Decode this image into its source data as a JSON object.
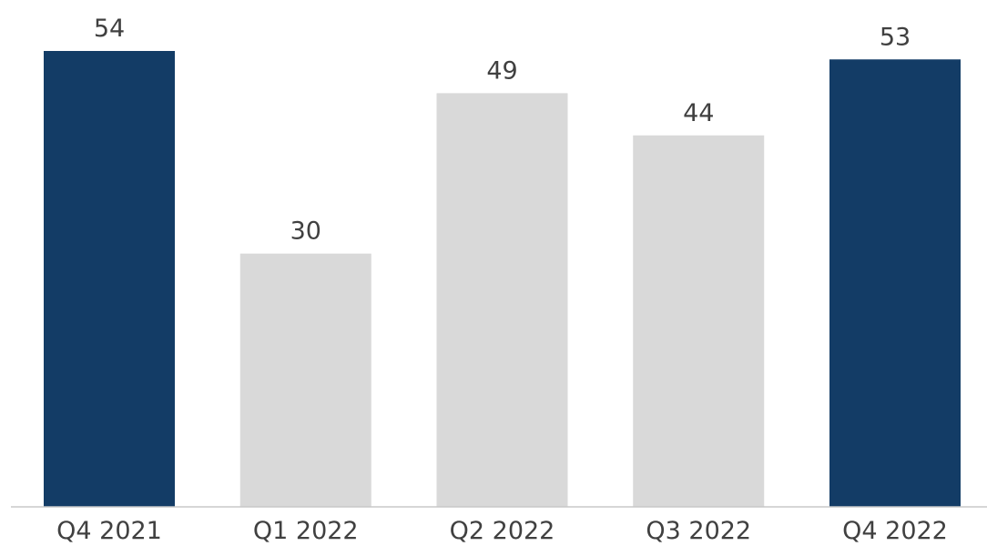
{
  "chart_data": {
    "type": "bar",
    "categories": [
      "Q4 2021",
      "Q1 2022",
      "Q2 2022",
      "Q3 2022",
      "Q4 2022"
    ],
    "values": [
      54,
      30,
      49,
      44,
      53
    ],
    "data_labels": [
      "54",
      "30",
      "49",
      "44",
      "53"
    ],
    "bar_colors": [
      "#133c66",
      "#d9d9d9",
      "#d9d9d9",
      "#d9d9d9",
      "#133c66"
    ],
    "axis_color": "#c8c8c8",
    "ylim": [
      0,
      54
    ],
    "grid": false,
    "legend": "none",
    "title": "",
    "xlabel": "",
    "ylabel": ""
  }
}
